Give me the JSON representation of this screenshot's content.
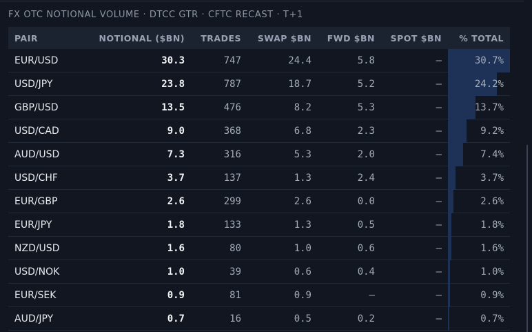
{
  "title": "FX OTC NOTIONAL VOLUME · DTCC GTR · CFTC RECAST · T+1",
  "table": {
    "headers": [
      "PAIR",
      "NOTIONAL ($BN)",
      "TRADES",
      "SWAP $BN",
      "FWD $BN",
      "SPOT $BN",
      "% TOTAL"
    ],
    "rows": [
      {
        "cells": [
          "EUR/USD",
          "30.3",
          "747",
          "24.4",
          "5.8",
          "—"
        ],
        "pct": {
          "value": 30.7,
          "label": "30.7%"
        }
      },
      {
        "cells": [
          "USD/JPY",
          "23.8",
          "787",
          "18.7",
          "5.2",
          "—"
        ],
        "pct": {
          "value": 24.2,
          "label": "24.2%"
        }
      },
      {
        "cells": [
          "GBP/USD",
          "13.5",
          "476",
          "8.2",
          "5.3",
          "—"
        ],
        "pct": {
          "value": 13.7,
          "label": "13.7%"
        }
      },
      {
        "cells": [
          "USD/CAD",
          "9.0",
          "368",
          "6.8",
          "2.3",
          "—"
        ],
        "pct": {
          "value": 9.2,
          "label": "9.2%"
        }
      },
      {
        "cells": [
          "AUD/USD",
          "7.3",
          "316",
          "5.3",
          "2.0",
          "—"
        ],
        "pct": {
          "value": 7.4,
          "label": "7.4%"
        }
      },
      {
        "cells": [
          "USD/CHF",
          "3.7",
          "137",
          "1.3",
          "2.4",
          "—"
        ],
        "pct": {
          "value": 3.7,
          "label": "3.7%"
        }
      },
      {
        "cells": [
          "EUR/GBP",
          "2.6",
          "299",
          "2.6",
          "0.0",
          "—"
        ],
        "pct": {
          "value": 2.6,
          "label": "2.6%"
        }
      },
      {
        "cells": [
          "EUR/JPY",
          "1.8",
          "133",
          "1.3",
          "0.5",
          "—"
        ],
        "pct": {
          "value": 1.8,
          "label": "1.8%"
        }
      },
      {
        "cells": [
          "NZD/USD",
          "1.6",
          "80",
          "1.0",
          "0.6",
          "—"
        ],
        "pct": {
          "value": 1.6,
          "label": "1.6%"
        }
      },
      {
        "cells": [
          "USD/NOK",
          "1.0",
          "39",
          "0.6",
          "0.4",
          "—"
        ],
        "pct": {
          "value": 1.0,
          "label": "1.0%"
        }
      },
      {
        "cells": [
          "EUR/SEK",
          "0.9",
          "81",
          "0.9",
          "—",
          "—"
        ],
        "pct": {
          "value": 0.9,
          "label": "0.9%"
        }
      },
      {
        "cells": [
          "AUD/JPY",
          "0.7",
          "16",
          "0.5",
          "0.2",
          "—"
        ],
        "pct": {
          "value": 0.7,
          "label": "0.7%"
        }
      }
    ]
  }
}
